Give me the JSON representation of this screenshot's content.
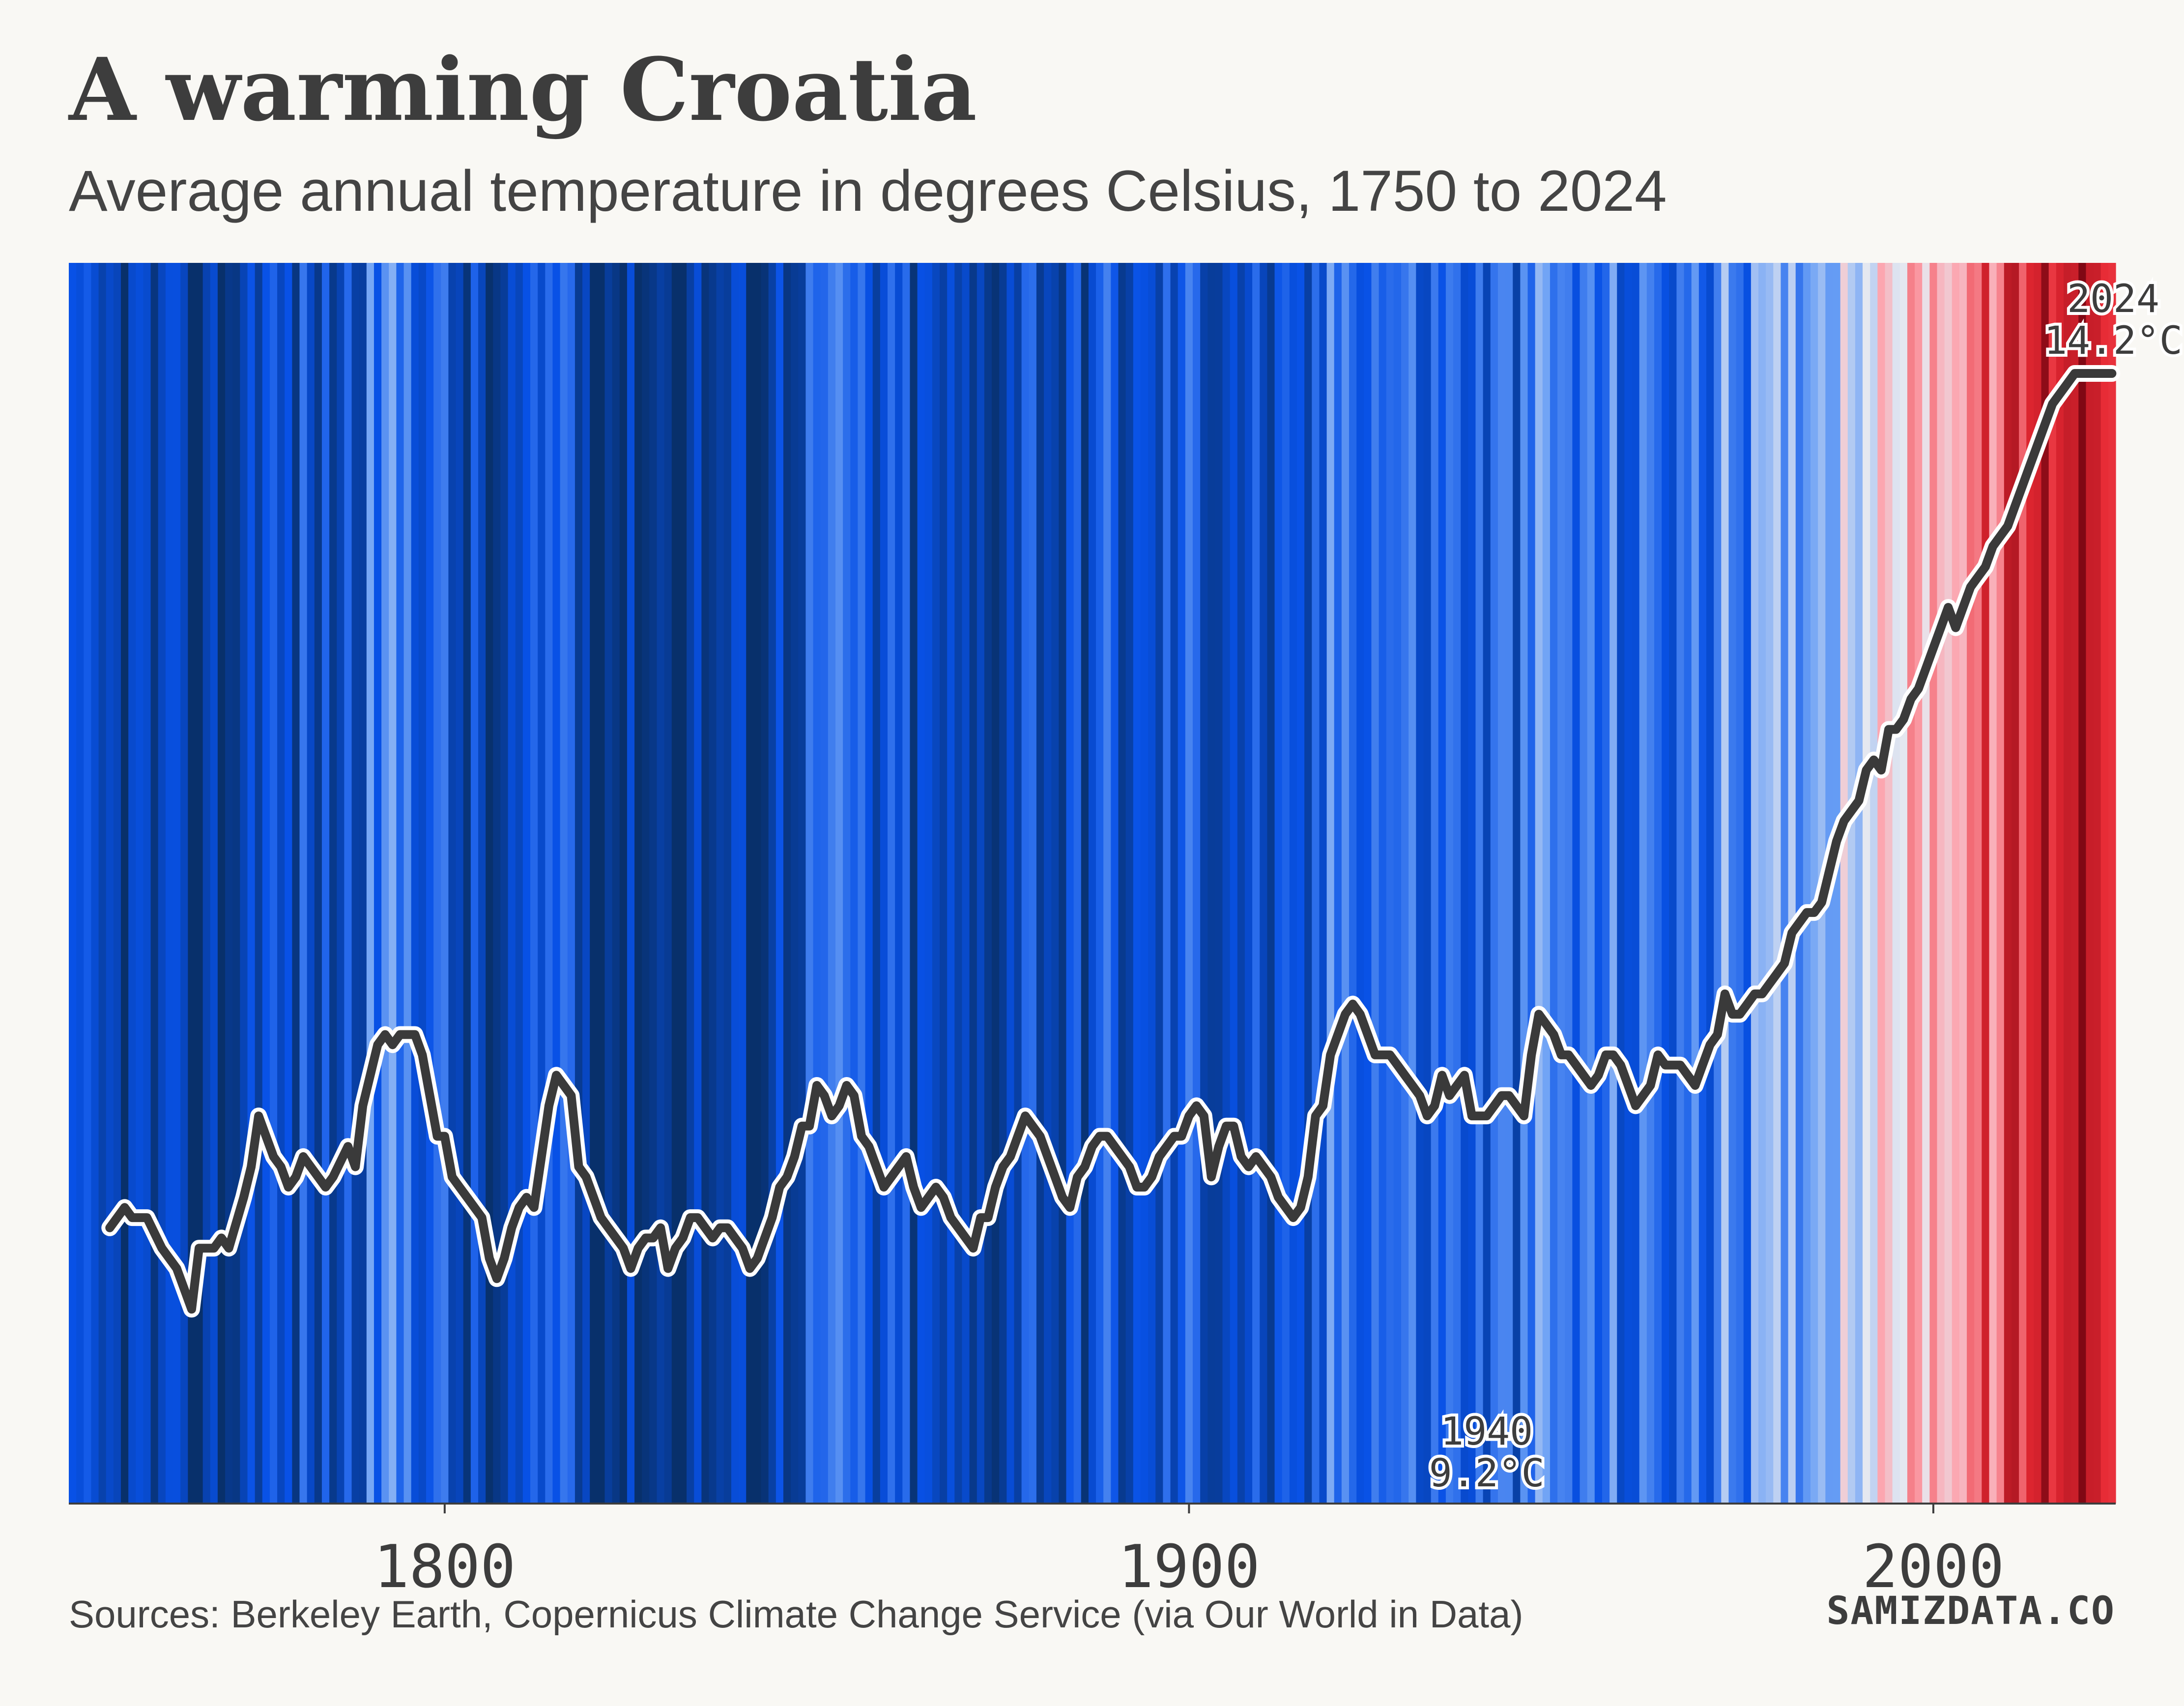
{
  "header": {
    "title": "A warming Croatia",
    "subtitle": "Average annual temperature in degrees Celsius, 1750 to 2024"
  },
  "footer": {
    "source": "Sources: Berkeley Earth, Copernicus Climate Change Service (via Our World in Data)",
    "brand": "SAMIZDATA.CO"
  },
  "colors": {
    "background": "#f9f8f4",
    "line": "#3a3a3a",
    "line_outline": "#ffffff",
    "cold": "#08306b",
    "warm": "#67000d"
  },
  "chart_data": {
    "type": "line",
    "title": "A warming Croatia",
    "subtitle": "Average annual temperature in degrees Celsius, 1750 to 2024",
    "xlabel": "",
    "ylabel": "",
    "xlim": [
      1750,
      2024
    ],
    "ylim": [
      9.2,
      14.2
    ],
    "x_ticks": [
      1800,
      1900,
      2000
    ],
    "x_tick_labels": [
      "1800",
      "1900",
      "2000"
    ],
    "grid": false,
    "background": "warming stripes (annual temperature, blue = cold, red = warm)",
    "series": [
      {
        "values": [
          [
            1755,
            10.0
          ],
          [
            1757,
            10.1
          ],
          [
            1758,
            10.05
          ],
          [
            1760,
            10.05
          ],
          [
            1762,
            9.9
          ],
          [
            1764,
            9.8
          ],
          [
            1766,
            9.6
          ],
          [
            1767,
            9.9
          ],
          [
            1769,
            9.9
          ],
          [
            1770,
            9.95
          ],
          [
            1771,
            9.9
          ],
          [
            1773,
            10.15
          ],
          [
            1774,
            10.3
          ],
          [
            1775,
            10.55
          ],
          [
            1777,
            10.35
          ],
          [
            1778,
            10.3
          ],
          [
            1779,
            10.2
          ],
          [
            1780,
            10.25
          ],
          [
            1781,
            10.35
          ],
          [
            1782,
            10.3
          ],
          [
            1784,
            10.2
          ],
          [
            1785,
            10.25
          ],
          [
            1787,
            10.4
          ],
          [
            1788,
            10.3
          ],
          [
            1789,
            10.6
          ],
          [
            1791,
            10.9
          ],
          [
            1792,
            10.95
          ],
          [
            1793,
            10.9
          ],
          [
            1794,
            10.95
          ],
          [
            1796,
            10.95
          ],
          [
            1797,
            10.85
          ],
          [
            1799,
            10.45
          ],
          [
            1800,
            10.45
          ],
          [
            1801,
            10.25
          ],
          [
            1802,
            10.2
          ],
          [
            1803,
            10.15
          ],
          [
            1805,
            10.05
          ],
          [
            1806,
            9.85
          ],
          [
            1807,
            9.75
          ],
          [
            1808,
            9.85
          ],
          [
            1809,
            10.0
          ],
          [
            1810,
            10.1
          ],
          [
            1811,
            10.15
          ],
          [
            1812,
            10.1
          ],
          [
            1814,
            10.6
          ],
          [
            1815,
            10.75
          ],
          [
            1816,
            10.7
          ],
          [
            1817,
            10.65
          ],
          [
            1818,
            10.3
          ],
          [
            1819,
            10.25
          ],
          [
            1821,
            10.05
          ],
          [
            1822,
            10.0
          ],
          [
            1823,
            9.95
          ],
          [
            1824,
            9.9
          ],
          [
            1825,
            9.8
          ],
          [
            1826,
            9.9
          ],
          [
            1827,
            9.95
          ],
          [
            1828,
            9.95
          ],
          [
            1829,
            10.0
          ],
          [
            1830,
            9.8
          ],
          [
            1831,
            9.9
          ],
          [
            1832,
            9.95
          ],
          [
            1833,
            10.05
          ],
          [
            1834,
            10.05
          ],
          [
            1835,
            10.0
          ],
          [
            1836,
            9.95
          ],
          [
            1837,
            10.0
          ],
          [
            1838,
            10.0
          ],
          [
            1839,
            9.95
          ],
          [
            1840,
            9.9
          ],
          [
            1841,
            9.8
          ],
          [
            1842,
            9.85
          ],
          [
            1843,
            9.95
          ],
          [
            1844,
            10.05
          ],
          [
            1845,
            10.2
          ],
          [
            1846,
            10.25
          ],
          [
            1847,
            10.35
          ],
          [
            1848,
            10.5
          ],
          [
            1849,
            10.5
          ],
          [
            1850,
            10.7
          ],
          [
            1851,
            10.65
          ],
          [
            1852,
            10.55
          ],
          [
            1853,
            10.6
          ],
          [
            1854,
            10.7
          ],
          [
            1855,
            10.65
          ],
          [
            1856,
            10.45
          ],
          [
            1857,
            10.4
          ],
          [
            1858,
            10.3
          ],
          [
            1859,
            10.2
          ],
          [
            1860,
            10.25
          ],
          [
            1861,
            10.3
          ],
          [
            1862,
            10.35
          ],
          [
            1863,
            10.2
          ],
          [
            1864,
            10.1
          ],
          [
            1865,
            10.15
          ],
          [
            1866,
            10.2
          ],
          [
            1867,
            10.15
          ],
          [
            1868,
            10.05
          ],
          [
            1869,
            10.0
          ],
          [
            1870,
            9.95
          ],
          [
            1871,
            9.9
          ],
          [
            1872,
            10.05
          ],
          [
            1873,
            10.05
          ],
          [
            1874,
            10.2
          ],
          [
            1875,
            10.3
          ],
          [
            1876,
            10.35
          ],
          [
            1877,
            10.45
          ],
          [
            1878,
            10.55
          ],
          [
            1879,
            10.5
          ],
          [
            1880,
            10.45
          ],
          [
            1881,
            10.35
          ],
          [
            1882,
            10.25
          ],
          [
            1883,
            10.15
          ],
          [
            1884,
            10.1
          ],
          [
            1885,
            10.25
          ],
          [
            1886,
            10.3
          ],
          [
            1887,
            10.4
          ],
          [
            1888,
            10.45
          ],
          [
            1889,
            10.45
          ],
          [
            1890,
            10.4
          ],
          [
            1891,
            10.35
          ],
          [
            1892,
            10.3
          ],
          [
            1893,
            10.2
          ],
          [
            1894,
            10.2
          ],
          [
            1895,
            10.25
          ],
          [
            1896,
            10.35
          ],
          [
            1897,
            10.4
          ],
          [
            1898,
            10.45
          ],
          [
            1899,
            10.45
          ],
          [
            1900,
            10.55
          ],
          [
            1901,
            10.6
          ],
          [
            1902,
            10.55
          ],
          [
            1903,
            10.25
          ],
          [
            1904,
            10.4
          ],
          [
            1905,
            10.5
          ],
          [
            1906,
            10.5
          ],
          [
            1907,
            10.35
          ],
          [
            1908,
            10.3
          ],
          [
            1909,
            10.35
          ],
          [
            1910,
            10.3
          ],
          [
            1911,
            10.25
          ],
          [
            1912,
            10.15
          ],
          [
            1913,
            10.1
          ],
          [
            1914,
            10.05
          ],
          [
            1915,
            10.1
          ],
          [
            1916,
            10.25
          ],
          [
            1917,
            10.55
          ],
          [
            1918,
            10.6
          ],
          [
            1919,
            10.85
          ],
          [
            1920,
            10.95
          ],
          [
            1921,
            11.05
          ],
          [
            1922,
            11.1
          ],
          [
            1923,
            11.05
          ],
          [
            1924,
            10.95
          ],
          [
            1925,
            10.85
          ],
          [
            1926,
            10.85
          ],
          [
            1927,
            10.85
          ],
          [
            1928,
            10.8
          ],
          [
            1929,
            10.75
          ],
          [
            1930,
            10.7
          ],
          [
            1931,
            10.65
          ],
          [
            1932,
            10.55
          ],
          [
            1933,
            10.6
          ],
          [
            1934,
            10.75
          ],
          [
            1935,
            10.65
          ],
          [
            1936,
            10.7
          ],
          [
            1937,
            10.75
          ],
          [
            1938,
            10.55
          ],
          [
            1939,
            10.55
          ],
          [
            1940,
            10.55
          ],
          [
            1941,
            10.6
          ],
          [
            1942,
            10.65
          ],
          [
            1943,
            10.65
          ],
          [
            1944,
            10.6
          ],
          [
            1945,
            10.55
          ],
          [
            1946,
            10.85
          ],
          [
            1947,
            11.05
          ],
          [
            1948,
            11.0
          ],
          [
            1949,
            10.95
          ],
          [
            1950,
            10.85
          ],
          [
            1951,
            10.85
          ],
          [
            1952,
            10.8
          ],
          [
            1953,
            10.75
          ],
          [
            1954,
            10.7
          ],
          [
            1955,
            10.75
          ],
          [
            1956,
            10.85
          ],
          [
            1957,
            10.85
          ],
          [
            1958,
            10.8
          ],
          [
            1959,
            10.7
          ],
          [
            1960,
            10.6
          ],
          [
            1961,
            10.65
          ],
          [
            1962,
            10.7
          ],
          [
            1963,
            10.85
          ],
          [
            1964,
            10.8
          ],
          [
            1965,
            10.8
          ],
          [
            1966,
            10.8
          ],
          [
            1967,
            10.75
          ],
          [
            1968,
            10.7
          ],
          [
            1969,
            10.8
          ],
          [
            1970,
            10.9
          ],
          [
            1971,
            10.95
          ],
          [
            1972,
            11.15
          ],
          [
            1973,
            11.05
          ],
          [
            1974,
            11.05
          ],
          [
            1975,
            11.1
          ],
          [
            1976,
            11.15
          ],
          [
            1977,
            11.15
          ],
          [
            1978,
            11.2
          ],
          [
            1979,
            11.25
          ],
          [
            1980,
            11.3
          ],
          [
            1981,
            11.45
          ],
          [
            1982,
            11.5
          ],
          [
            1983,
            11.55
          ],
          [
            1984,
            11.55
          ],
          [
            1985,
            11.6
          ],
          [
            1986,
            11.75
          ],
          [
            1987,
            11.9
          ],
          [
            1988,
            12.0
          ],
          [
            1989,
            12.05
          ],
          [
            1990,
            12.1
          ],
          [
            1991,
            12.25
          ],
          [
            1992,
            12.3
          ],
          [
            1993,
            12.25
          ],
          [
            1994,
            12.45
          ],
          [
            1995,
            12.45
          ],
          [
            1996,
            12.5
          ],
          [
            1997,
            12.6
          ],
          [
            1998,
            12.65
          ],
          [
            1999,
            12.75
          ],
          [
            2000,
            12.85
          ],
          [
            2001,
            12.95
          ],
          [
            2002,
            13.05
          ],
          [
            2003,
            12.95
          ],
          [
            2004,
            13.05
          ],
          [
            2005,
            13.15
          ],
          [
            2006,
            13.2
          ],
          [
            2007,
            13.25
          ],
          [
            2008,
            13.35
          ],
          [
            2009,
            13.4
          ],
          [
            2010,
            13.45
          ],
          [
            2011,
            13.55
          ],
          [
            2012,
            13.65
          ],
          [
            2013,
            13.75
          ],
          [
            2014,
            13.85
          ],
          [
            2015,
            13.95
          ],
          [
            2016,
            14.05
          ],
          [
            2017,
            14.1
          ],
          [
            2018,
            14.15
          ],
          [
            2019,
            14.2
          ],
          [
            2020,
            14.2
          ],
          [
            2021,
            14.2
          ],
          [
            2022,
            14.2
          ],
          [
            2023,
            14.2
          ],
          [
            2024,
            14.2
          ]
        ]
      }
    ],
    "annotations": [
      {
        "year": "1940",
        "value": "9.2°C"
      },
      {
        "year": "2024",
        "value": "14.2°C"
      }
    ]
  }
}
